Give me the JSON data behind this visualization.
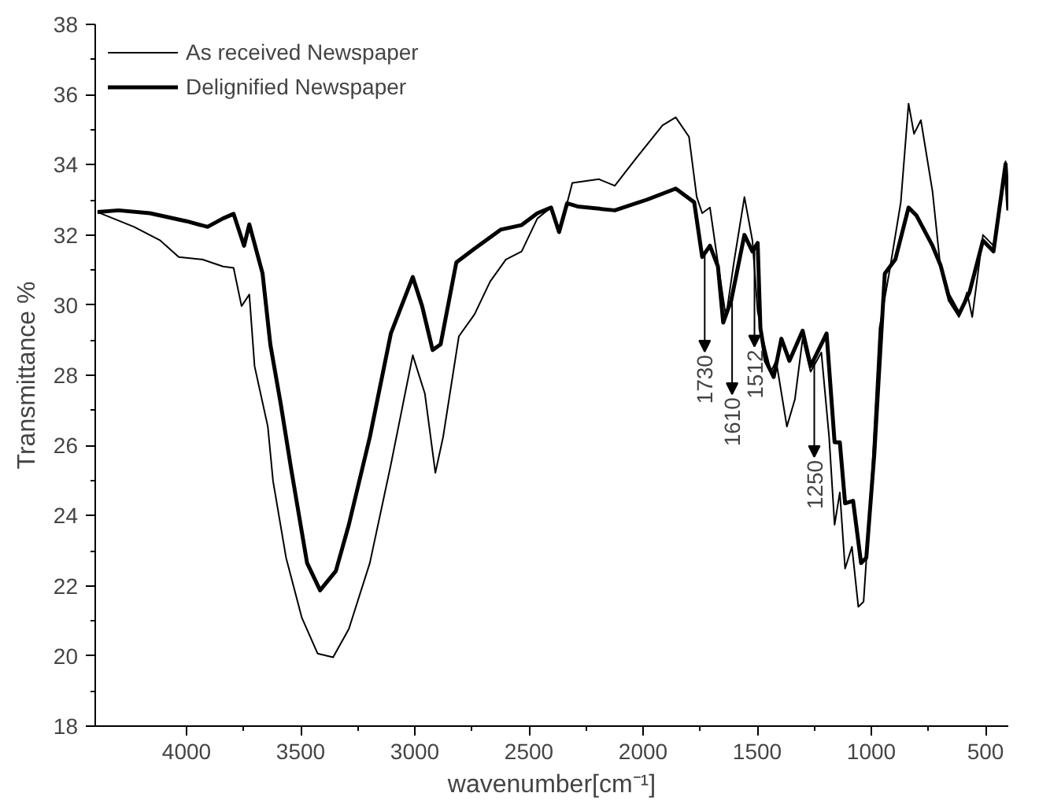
{
  "chart_data": {
    "type": "line",
    "xlabel": "wavenumber[cm⁻¹]",
    "ylabel": "Transmittance %",
    "xlim": [
      4400,
      400
    ],
    "xticks": [
      4000,
      3500,
      3000,
      2500,
      2000,
      1500,
      1000,
      500
    ],
    "ylim": [
      18,
      38
    ],
    "yticks": [
      18,
      20,
      22,
      24,
      26,
      28,
      30,
      32,
      34,
      36,
      38
    ],
    "grid": false,
    "legend": "top left",
    "marker": "none",
    "line_style": "solid",
    "series": [
      {
        "name": "As received Newspaper",
        "color": "#000000",
        "x": [
          4390,
          4230,
          4115,
          4034,
          3931,
          3840,
          3794,
          3759,
          3725,
          3702,
          3644,
          3621,
          3564,
          3495,
          3426,
          3358,
          3289,
          3197,
          3105,
          3009,
          2956,
          2910,
          2876,
          2807,
          2738,
          2670,
          2601,
          2532,
          2463,
          2403,
          2368,
          2345,
          2310,
          2194,
          2124,
          2031,
          1915,
          1857,
          1799,
          1765,
          1741,
          1707,
          1683,
          1637,
          1602,
          1556,
          1521,
          1498,
          1475,
          1440,
          1417,
          1370,
          1335,
          1301,
          1266,
          1219,
          1185,
          1161,
          1138,
          1115,
          1085,
          1057,
          1034,
          999,
          964,
          918,
          871,
          837,
          813,
          783,
          732,
          697,
          662,
          616,
          581,
          558,
          511,
          465,
          412,
          400
        ],
        "values": [
          32.65,
          32.23,
          31.84,
          31.37,
          31.3,
          31.1,
          31.06,
          29.97,
          30.3,
          28.26,
          26.54,
          24.98,
          22.8,
          21.09,
          20.07,
          19.96,
          20.77,
          22.65,
          25.45,
          28.57,
          27.48,
          25.22,
          26.24,
          29.11,
          29.74,
          30.67,
          31.3,
          31.53,
          32.47,
          32.78,
          32.15,
          32.6,
          33.48,
          33.59,
          33.4,
          34.18,
          35.12,
          35.35,
          34.8,
          33.08,
          32.62,
          32.78,
          31.69,
          29.66,
          31.22,
          33.08,
          31.84,
          29.82,
          29.04,
          28.1,
          28.41,
          26.54,
          27.31,
          29.04,
          28.1,
          28.65,
          26.24,
          23.74,
          24.66,
          22.49,
          23.11,
          21.4,
          21.55,
          24.98,
          29.35,
          31.06,
          32.93,
          35.74,
          34.88,
          35.27,
          33.24,
          31.06,
          30.13,
          29.66,
          30.36,
          29.66,
          32.0,
          31.69,
          34.1,
          32.8
        ]
      },
      {
        "name": "Delignified Newspaper",
        "color": "#000000",
        "x": [
          4390,
          4298,
          4161,
          4000,
          3908,
          3840,
          3794,
          3748,
          3725,
          3667,
          3633,
          3587,
          3541,
          3472,
          3415,
          3346,
          3289,
          3197,
          3105,
          3009,
          2968,
          2922,
          2887,
          2818,
          2738,
          2624,
          2532,
          2463,
          2403,
          2368,
          2333,
          2287,
          2124,
          1985,
          1857,
          1776,
          1741,
          1707,
          1672,
          1649,
          1614,
          1556,
          1521,
          1498,
          1486,
          1463,
          1428,
          1394,
          1359,
          1301,
          1266,
          1196,
          1161,
          1138,
          1115,
          1080,
          1045,
          1022,
          987,
          941,
          895,
          837,
          802,
          732,
          697,
          662,
          616,
          570,
          511,
          465,
          412,
          400
        ],
        "values": [
          32.65,
          32.7,
          32.62,
          32.39,
          32.23,
          32.47,
          32.6,
          31.69,
          32.3,
          30.9,
          28.88,
          27.17,
          25.3,
          22.65,
          21.87,
          22.42,
          23.74,
          26.24,
          29.19,
          30.8,
          29.97,
          28.72,
          28.88,
          31.22,
          31.61,
          32.15,
          32.28,
          32.62,
          32.78,
          32.08,
          32.9,
          32.81,
          32.7,
          33.0,
          33.32,
          32.93,
          31.37,
          31.69,
          31.1,
          29.5,
          30.13,
          32.0,
          31.53,
          31.77,
          29.35,
          28.41,
          27.95,
          29.04,
          28.41,
          29.27,
          28.26,
          29.19,
          26.09,
          26.09,
          24.35,
          24.42,
          22.65,
          22.8,
          25.76,
          30.9,
          31.3,
          32.78,
          32.55,
          31.69,
          31.14,
          30.28,
          29.74,
          30.36,
          31.84,
          31.53,
          34.02,
          32.7
        ]
      }
    ],
    "annotations": [
      {
        "text": "1730",
        "x": 1730,
        "y": 31.47
      },
      {
        "text": "1610",
        "x": 1610,
        "y": 30.26
      },
      {
        "text": "1512",
        "x": 1512,
        "y": 31.62
      },
      {
        "text": "1250",
        "x": 1250,
        "y": 28.47
      }
    ]
  }
}
